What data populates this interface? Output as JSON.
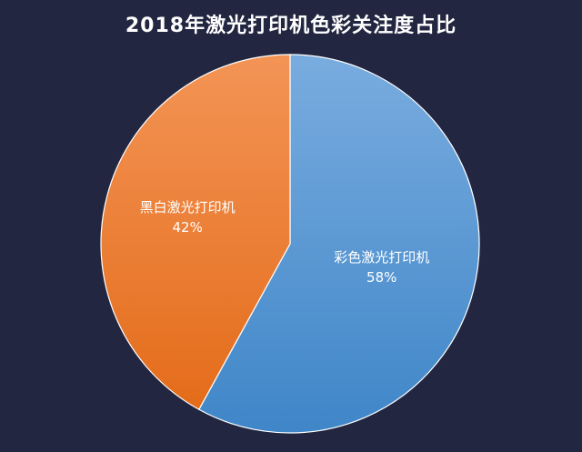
{
  "chart_data": {
    "type": "pie",
    "title": "2018年激光打印机色彩关注度占比",
    "slices": [
      {
        "label": "彩色激光打印机",
        "value": 58,
        "value_label": "58%",
        "color": "#5b9bd5"
      },
      {
        "label": "黑白激光打印机",
        "value": 42,
        "value_label": "42%",
        "color": "#ed7d31"
      }
    ]
  },
  "colors": {
    "background": "#222640",
    "gradients": {
      "彩色激光打印机": [
        "#79acdf",
        "#3f86c8"
      ],
      "黑白激光打印机": [
        "#f39456",
        "#e46c1a"
      ]
    }
  }
}
